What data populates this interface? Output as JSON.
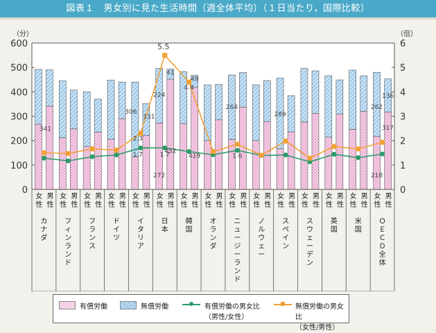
{
  "title": "図表１　男女別に見た生活時間（週全体平均）（１日当たり，国際比較）",
  "chart_data": {
    "type": "bar",
    "stacked": true,
    "title": "男女別に見た生活時間（週全体平均）（１日当たり，国際比較）",
    "left_axis": {
      "label": "（分）",
      "ylim": [
        0,
        600
      ],
      "ticks": [
        0,
        100,
        200,
        300,
        400,
        500,
        600
      ]
    },
    "right_axis": {
      "label": "（倍）",
      "ylim": [
        0,
        6
      ],
      "ticks": [
        0,
        1,
        2,
        3,
        4,
        5,
        6
      ]
    },
    "sex_labels": {
      "female": "女性",
      "male": "男性"
    },
    "categories": [
      "カナダ",
      "フィンランド",
      "フランス",
      "ドイツ",
      "イタリア",
      "日本",
      "韓国",
      "オランダ",
      "ニュージーランド",
      "ノルウェー",
      "スペイン",
      "スウェーデン",
      "英国",
      "米国",
      "ＯＥＣＤ全体"
    ],
    "series": [
      {
        "name": "有償労働",
        "kind": "bar",
        "color": "#e9a6cf",
        "female": [
          267,
          212,
          176,
          206,
          134,
          272,
          270,
          200,
          205,
          200,
          167,
          276,
          214,
          246,
          218
        ],
        "male": [
          341,
          248,
          235,
          290,
          221,
          452,
          419,
          285,
          337,
          278,
          236,
          312,
          308,
          320,
          317
        ]
      },
      {
        "name": "無償労働",
        "kind": "bar",
        "color": "#a9cfee",
        "female": [
          225,
          233,
          224,
          242,
          306,
          224,
          213,
          228,
          264,
          229,
          289,
          220,
          252,
          243,
          262
        ],
        "male": [
          149,
          159,
          135,
          150,
          131,
          41,
          49,
          145,
          142,
          168,
          148,
          174,
          141,
          146,
          136
        ]
      },
      {
        "name": "有償労働の男女比（男性/女性）",
        "kind": "line",
        "axis": "right",
        "color": "#2e9a6b",
        "values": [
          1.28,
          1.17,
          1.34,
          1.41,
          1.7,
          1.7,
          1.55,
          1.42,
          1.6,
          1.39,
          1.41,
          1.13,
          1.44,
          1.3,
          1.45
        ]
      },
      {
        "name": "無償労働の男女比（女性/男性）",
        "kind": "line",
        "axis": "right",
        "color": "#f0a035",
        "values": [
          1.5,
          1.47,
          1.66,
          1.61,
          2.3,
          5.5,
          4.4,
          1.55,
          1.85,
          1.4,
          1.98,
          1.28,
          1.76,
          1.66,
          1.93
        ]
      }
    ],
    "annotations": [
      {
        "text": "341",
        "target": "カナダ 男性 有償労働"
      },
      {
        "text": "306",
        "target": "イタリア 女性 無償労働"
      },
      {
        "text": "131",
        "target": "イタリア 男性 無償労働"
      },
      {
        "text": "2.3",
        "target": "イタリア 無償労働の男女比"
      },
      {
        "text": "1.7",
        "target": "イタリア 有償労働の男女比"
      },
      {
        "text": "5.5",
        "target": "日本 無償労働の男女比"
      },
      {
        "text": "224",
        "target": "日本 女性 無償労働"
      },
      {
        "text": "41",
        "target": "日本 男性 無償労働"
      },
      {
        "text": "452",
        "target": "日本 男性 有償労働"
      },
      {
        "text": "272",
        "target": "日本 女性 有償労働"
      },
      {
        "text": "1.7",
        "target": "日本 有償労働の男女比"
      },
      {
        "text": "4.4",
        "target": "韓国 無償労働の男女比"
      },
      {
        "text": "49",
        "target": "韓国 男性 無償労働"
      },
      {
        "text": "419",
        "target": "韓国 男性 有償労働"
      },
      {
        "text": "264",
        "target": "ニュージーランド 女性 無償労働"
      },
      {
        "text": "1.6",
        "target": "ニュージーランド 有償労働の男女比"
      },
      {
        "text": "289",
        "target": "スペイン 女性 無償労働"
      },
      {
        "text": "262",
        "target": "ＯＥＣＤ全体 女性 無償労働"
      },
      {
        "text": "136",
        "target": "ＯＥＣＤ全体 男性 無償労働"
      },
      {
        "text": "317",
        "target": "ＯＥＣＤ全体 男性 有償労働"
      },
      {
        "text": "218",
        "target": "ＯＥＣＤ全体 女性 有償労働"
      }
    ],
    "legend_position": "bottom",
    "grid": false
  },
  "legend": {
    "paid": "有償労働",
    "unpaid": "無償労働",
    "paid_ratio_1": "有償労働の男女比",
    "paid_ratio_2": "（男性/女性）",
    "unpaid_ratio_1": "無償労働の男女比",
    "unpaid_ratio_2": "（女性/男性）"
  }
}
